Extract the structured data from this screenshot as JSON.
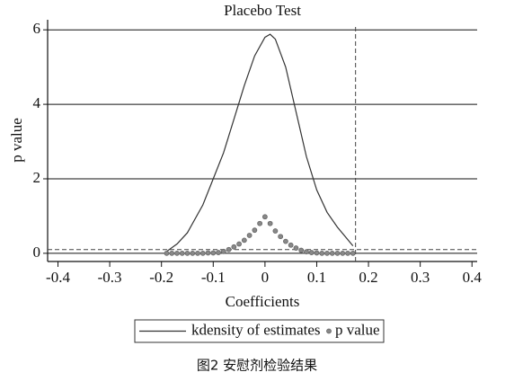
{
  "chart_data": {
    "type": "line",
    "title": "Placebo Test",
    "x_label": "Coefficients",
    "y_label": "p value",
    "xlim": [
      -0.42,
      0.41
    ],
    "ylim": [
      -0.22,
      6.27
    ],
    "xticks": [
      -0.4,
      -0.3,
      -0.2,
      -0.1,
      0,
      0.1,
      0.2,
      0.3,
      0.4
    ],
    "yticks": [
      0,
      2,
      4,
      6
    ],
    "grid": true,
    "hline": 0.1,
    "vline": 0.175,
    "series": [
      {
        "name": "kdensity of estimates",
        "mode": "line",
        "color": "#333333",
        "x": [
          -0.19,
          -0.17,
          -0.15,
          -0.12,
          -0.1,
          -0.08,
          -0.06,
          -0.04,
          -0.02,
          0,
          0.01,
          0.02,
          0.04,
          0.06,
          0.08,
          0.1,
          0.12,
          0.14,
          0.17
        ],
        "values": [
          0.05,
          0.25,
          0.55,
          1.3,
          2.0,
          2.7,
          3.6,
          4.5,
          5.3,
          5.8,
          5.88,
          5.75,
          5.0,
          3.8,
          2.6,
          1.7,
          1.1,
          0.7,
          0.2
        ]
      },
      {
        "name": "p value",
        "mode": "scatter",
        "color": "#888888",
        "x": [
          -0.19,
          -0.18,
          -0.17,
          -0.16,
          -0.15,
          -0.14,
          -0.13,
          -0.12,
          -0.11,
          -0.1,
          -0.09,
          -0.08,
          -0.07,
          -0.06,
          -0.05,
          -0.04,
          -0.03,
          -0.02,
          -0.01,
          0,
          0.01,
          0.02,
          0.03,
          0.04,
          0.05,
          0.06,
          0.07,
          0.08,
          0.09,
          0.1,
          0.11,
          0.12,
          0.13,
          0.14,
          0.15,
          0.16,
          0.17
        ],
        "values": [
          0,
          0,
          0,
          0,
          0,
          0,
          0,
          0,
          0.01,
          0.01,
          0.02,
          0.05,
          0.1,
          0.17,
          0.25,
          0.35,
          0.48,
          0.62,
          0.8,
          0.98,
          0.8,
          0.6,
          0.45,
          0.32,
          0.22,
          0.14,
          0.08,
          0.04,
          0.02,
          0.01,
          0,
          0,
          0,
          0,
          0,
          0,
          0
        ]
      }
    ]
  },
  "caption": "图2  安慰剂检验结果"
}
